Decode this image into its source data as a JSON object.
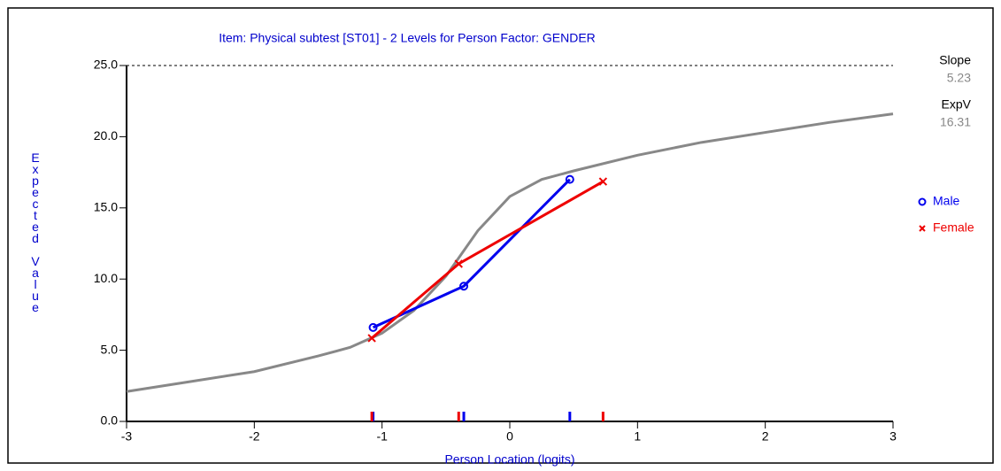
{
  "chart_data": {
    "type": "line",
    "title": "Item: Physical subtest [ST01] - 2 Levels for Person Factor: GENDER",
    "x_label": "Person Location (logits)",
    "y_label": "Expected Value",
    "xlim": [
      -3,
      3
    ],
    "xticks": [
      -3,
      -2,
      -1,
      0,
      1,
      2,
      3
    ],
    "ylim": [
      0,
      25
    ],
    "yticks": [
      {
        "value": 0,
        "label": "0.0"
      },
      {
        "value": 5,
        "label": "5.0"
      },
      {
        "value": 10,
        "label": "10.0"
      },
      {
        "value": 15,
        "label": "15.0"
      },
      {
        "value": 20,
        "label": "20.0"
      },
      {
        "value": 25,
        "label": "25.0"
      }
    ],
    "curve": {
      "color": "#888888",
      "x": [
        -3,
        -2.5,
        -2,
        -1.5,
        -1.25,
        -1,
        -0.75,
        -0.5,
        -0.25,
        0,
        0.25,
        0.5,
        1,
        1.5,
        2,
        2.5,
        3
      ],
      "values": [
        2.1,
        2.8,
        3.5,
        4.6,
        5.2,
        6.2,
        7.8,
        10.2,
        13.4,
        15.8,
        17.0,
        17.6,
        18.7,
        19.6,
        20.3,
        21.0,
        21.6
      ]
    },
    "series": [
      {
        "name": "Male",
        "color": "#0000ee",
        "marker": "circle",
        "x": [
          -1.07,
          -0.36,
          0.47
        ],
        "values": [
          6.6,
          9.5,
          17.0
        ]
      },
      {
        "name": "Female",
        "color": "#ee0000",
        "marker": "cross",
        "x": [
          -1.08,
          -0.4,
          0.73
        ],
        "values": [
          5.85,
          11.07,
          16.85
        ]
      }
    ],
    "stats": [
      {
        "label": "Slope",
        "value": 5.23
      },
      {
        "label": "ExpV",
        "value": 16.31
      }
    ]
  }
}
